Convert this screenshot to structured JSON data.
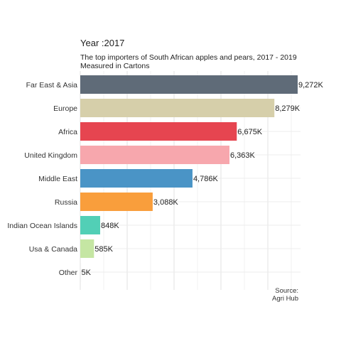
{
  "header": {
    "title": "Year :2017",
    "subtitle": "The top importers of South African apples and pears, 2017 - 2019",
    "subtitle2": "Measured in Cartons"
  },
  "caption": {
    "line1": "Source:",
    "line2": "Agri Hub"
  },
  "chart_data": {
    "type": "bar",
    "orientation": "horizontal",
    "title": "Year :2017",
    "subtitle": "The top importers of South African apples and pears, 2017 - 2019",
    "xlabel": "",
    "ylabel": "",
    "categories": [
      "Far East & Asia",
      "Europe",
      "Africa",
      "United Kingdom",
      "Middle East",
      "Russia",
      "Indian Ocean Islands",
      "Usa & Canada",
      "Other"
    ],
    "values": [
      9272,
      8279,
      6675,
      6363,
      4786,
      3088,
      848,
      585,
      5
    ],
    "value_labels": [
      "9,272K",
      "8,279K",
      "6,675K",
      "6,363K",
      "4,786K",
      "3,088K",
      "848K",
      "585K",
      "5K"
    ],
    "colors": [
      "#5f6b78",
      "#d6cfaa",
      "#e64550",
      "#f7a7ad",
      "#4a94c6",
      "#f99e3c",
      "#52cfb6",
      "#c5e6a3",
      "#dddddd"
    ],
    "xlim": [
      0,
      9272
    ],
    "grid": true,
    "legend": "none"
  }
}
